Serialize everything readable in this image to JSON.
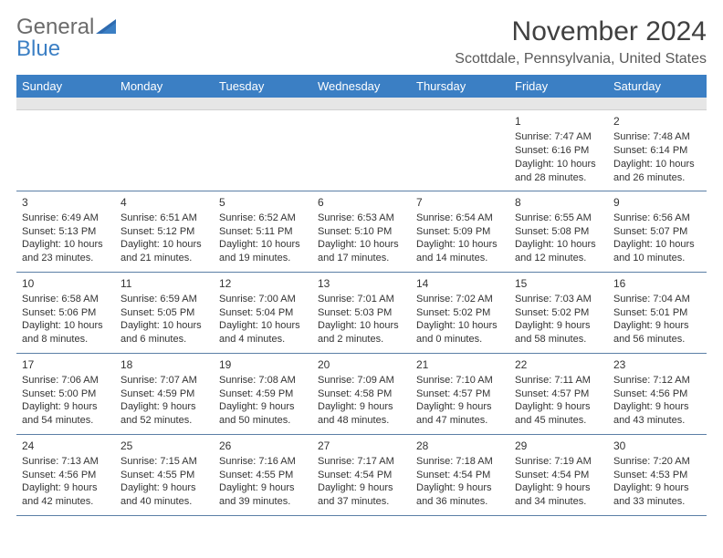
{
  "logo": {
    "word1": "General",
    "word2": "Blue"
  },
  "title": "November 2024",
  "location": "Scottdale, Pennsylvania, United States",
  "theme": {
    "header_bg": "#3b7fc4",
    "header_fg": "#ffffff",
    "strip_bg": "#e6e6e6",
    "rule": "#5b7fa6",
    "text": "#333333",
    "title_color": "#404040",
    "location_color": "#595959",
    "logo_grey": "#6b6b6b",
    "logo_blue": "#3b7fc4"
  },
  "dow": [
    "Sunday",
    "Monday",
    "Tuesday",
    "Wednesday",
    "Thursday",
    "Friday",
    "Saturday"
  ],
  "weeks": [
    [
      null,
      null,
      null,
      null,
      null,
      {
        "n": "1",
        "sr": "Sunrise: 7:47 AM",
        "ss": "Sunset: 6:16 PM",
        "d1": "Daylight: 10 hours",
        "d2": "and 28 minutes."
      },
      {
        "n": "2",
        "sr": "Sunrise: 7:48 AM",
        "ss": "Sunset: 6:14 PM",
        "d1": "Daylight: 10 hours",
        "d2": "and 26 minutes."
      }
    ],
    [
      {
        "n": "3",
        "sr": "Sunrise: 6:49 AM",
        "ss": "Sunset: 5:13 PM",
        "d1": "Daylight: 10 hours",
        "d2": "and 23 minutes."
      },
      {
        "n": "4",
        "sr": "Sunrise: 6:51 AM",
        "ss": "Sunset: 5:12 PM",
        "d1": "Daylight: 10 hours",
        "d2": "and 21 minutes."
      },
      {
        "n": "5",
        "sr": "Sunrise: 6:52 AM",
        "ss": "Sunset: 5:11 PM",
        "d1": "Daylight: 10 hours",
        "d2": "and 19 minutes."
      },
      {
        "n": "6",
        "sr": "Sunrise: 6:53 AM",
        "ss": "Sunset: 5:10 PM",
        "d1": "Daylight: 10 hours",
        "d2": "and 17 minutes."
      },
      {
        "n": "7",
        "sr": "Sunrise: 6:54 AM",
        "ss": "Sunset: 5:09 PM",
        "d1": "Daylight: 10 hours",
        "d2": "and 14 minutes."
      },
      {
        "n": "8",
        "sr": "Sunrise: 6:55 AM",
        "ss": "Sunset: 5:08 PM",
        "d1": "Daylight: 10 hours",
        "d2": "and 12 minutes."
      },
      {
        "n": "9",
        "sr": "Sunrise: 6:56 AM",
        "ss": "Sunset: 5:07 PM",
        "d1": "Daylight: 10 hours",
        "d2": "and 10 minutes."
      }
    ],
    [
      {
        "n": "10",
        "sr": "Sunrise: 6:58 AM",
        "ss": "Sunset: 5:06 PM",
        "d1": "Daylight: 10 hours",
        "d2": "and 8 minutes."
      },
      {
        "n": "11",
        "sr": "Sunrise: 6:59 AM",
        "ss": "Sunset: 5:05 PM",
        "d1": "Daylight: 10 hours",
        "d2": "and 6 minutes."
      },
      {
        "n": "12",
        "sr": "Sunrise: 7:00 AM",
        "ss": "Sunset: 5:04 PM",
        "d1": "Daylight: 10 hours",
        "d2": "and 4 minutes."
      },
      {
        "n": "13",
        "sr": "Sunrise: 7:01 AM",
        "ss": "Sunset: 5:03 PM",
        "d1": "Daylight: 10 hours",
        "d2": "and 2 minutes."
      },
      {
        "n": "14",
        "sr": "Sunrise: 7:02 AM",
        "ss": "Sunset: 5:02 PM",
        "d1": "Daylight: 10 hours",
        "d2": "and 0 minutes."
      },
      {
        "n": "15",
        "sr": "Sunrise: 7:03 AM",
        "ss": "Sunset: 5:02 PM",
        "d1": "Daylight: 9 hours",
        "d2": "and 58 minutes."
      },
      {
        "n": "16",
        "sr": "Sunrise: 7:04 AM",
        "ss": "Sunset: 5:01 PM",
        "d1": "Daylight: 9 hours",
        "d2": "and 56 minutes."
      }
    ],
    [
      {
        "n": "17",
        "sr": "Sunrise: 7:06 AM",
        "ss": "Sunset: 5:00 PM",
        "d1": "Daylight: 9 hours",
        "d2": "and 54 minutes."
      },
      {
        "n": "18",
        "sr": "Sunrise: 7:07 AM",
        "ss": "Sunset: 4:59 PM",
        "d1": "Daylight: 9 hours",
        "d2": "and 52 minutes."
      },
      {
        "n": "19",
        "sr": "Sunrise: 7:08 AM",
        "ss": "Sunset: 4:59 PM",
        "d1": "Daylight: 9 hours",
        "d2": "and 50 minutes."
      },
      {
        "n": "20",
        "sr": "Sunrise: 7:09 AM",
        "ss": "Sunset: 4:58 PM",
        "d1": "Daylight: 9 hours",
        "d2": "and 48 minutes."
      },
      {
        "n": "21",
        "sr": "Sunrise: 7:10 AM",
        "ss": "Sunset: 4:57 PM",
        "d1": "Daylight: 9 hours",
        "d2": "and 47 minutes."
      },
      {
        "n": "22",
        "sr": "Sunrise: 7:11 AM",
        "ss": "Sunset: 4:57 PM",
        "d1": "Daylight: 9 hours",
        "d2": "and 45 minutes."
      },
      {
        "n": "23",
        "sr": "Sunrise: 7:12 AM",
        "ss": "Sunset: 4:56 PM",
        "d1": "Daylight: 9 hours",
        "d2": "and 43 minutes."
      }
    ],
    [
      {
        "n": "24",
        "sr": "Sunrise: 7:13 AM",
        "ss": "Sunset: 4:56 PM",
        "d1": "Daylight: 9 hours",
        "d2": "and 42 minutes."
      },
      {
        "n": "25",
        "sr": "Sunrise: 7:15 AM",
        "ss": "Sunset: 4:55 PM",
        "d1": "Daylight: 9 hours",
        "d2": "and 40 minutes."
      },
      {
        "n": "26",
        "sr": "Sunrise: 7:16 AM",
        "ss": "Sunset: 4:55 PM",
        "d1": "Daylight: 9 hours",
        "d2": "and 39 minutes."
      },
      {
        "n": "27",
        "sr": "Sunrise: 7:17 AM",
        "ss": "Sunset: 4:54 PM",
        "d1": "Daylight: 9 hours",
        "d2": "and 37 minutes."
      },
      {
        "n": "28",
        "sr": "Sunrise: 7:18 AM",
        "ss": "Sunset: 4:54 PM",
        "d1": "Daylight: 9 hours",
        "d2": "and 36 minutes."
      },
      {
        "n": "29",
        "sr": "Sunrise: 7:19 AM",
        "ss": "Sunset: 4:54 PM",
        "d1": "Daylight: 9 hours",
        "d2": "and 34 minutes."
      },
      {
        "n": "30",
        "sr": "Sunrise: 7:20 AM",
        "ss": "Sunset: 4:53 PM",
        "d1": "Daylight: 9 hours",
        "d2": "and 33 minutes."
      }
    ]
  ]
}
